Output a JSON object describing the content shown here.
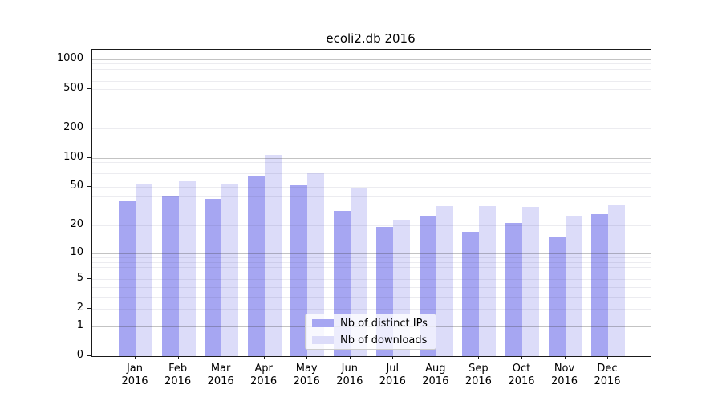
{
  "title": "ecoli2.db 2016",
  "chart_data": {
    "type": "bar",
    "title": "ecoli2.db 2016",
    "categories": [
      "Jan 2016",
      "Feb 2016",
      "Mar 2016",
      "Apr 2016",
      "May 2016",
      "Jun 2016",
      "Jul 2016",
      "Aug 2016",
      "Sep 2016",
      "Oct 2016",
      "Nov 2016",
      "Dec 2016"
    ],
    "series": [
      {
        "name": "Nb of distinct IPs",
        "color": "#a6a6f2",
        "values": [
          36,
          40,
          38,
          65,
          52,
          28,
          19,
          25,
          17,
          21,
          15,
          26
        ]
      },
      {
        "name": "Nb of downloads",
        "color": "#dcdcf9",
        "values": [
          54,
          57,
          53,
          107,
          69,
          49,
          23,
          32,
          32,
          31,
          25,
          33
        ]
      }
    ],
    "xlabel": "",
    "ylabel": "",
    "yscale": "log-like (position proportional to log10(value+1))",
    "y_ticks": [
      0,
      1,
      2,
      5,
      10,
      20,
      50,
      100,
      200,
      500,
      1000
    ],
    "ylim": [
      0,
      1250
    ],
    "grid": true,
    "legend_position": "lower center inside plot"
  },
  "legend": {
    "item1": "Nb of distinct IPs",
    "item2": "Nb of downloads"
  },
  "colors": {
    "bar_distinct_ips": "#a6a6f2",
    "bar_downloads": "#dcdcf9",
    "grid_major": "#c6c6c6",
    "grid_minor": "#e8e8ee",
    "spine": "#1a1a1a",
    "background": "#ffffff"
  }
}
